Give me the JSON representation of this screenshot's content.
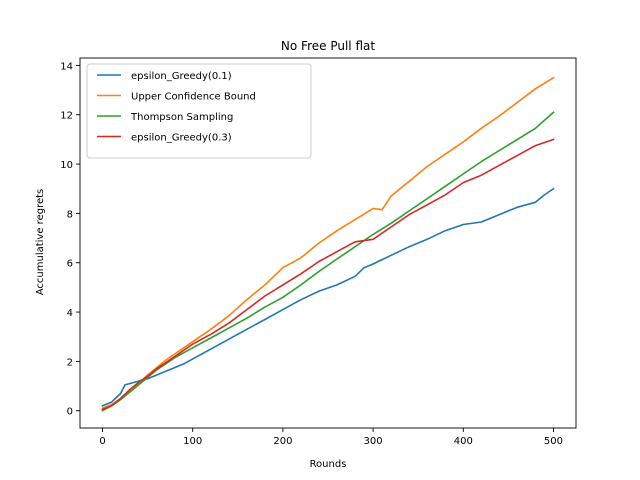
{
  "chart_data": {
    "type": "line",
    "title": "No Free Pull flat",
    "xlabel": "Rounds",
    "ylabel": "Accumulative regrets",
    "xlim": [
      -25,
      525
    ],
    "ylim": [
      -0.7,
      14.3
    ],
    "xticks": [
      0,
      100,
      200,
      300,
      400,
      500
    ],
    "yticks": [
      0,
      2,
      4,
      6,
      8,
      10,
      12,
      14
    ],
    "grid": false,
    "legend_position": "top-left",
    "series": [
      {
        "name": "epsilon_Greedy(0.1)",
        "color": "#1f77b4",
        "x": [
          0,
          10,
          20,
          25,
          30,
          40,
          50,
          60,
          70,
          80,
          90,
          100,
          120,
          140,
          160,
          180,
          200,
          220,
          240,
          260,
          280,
          290,
          300,
          320,
          340,
          360,
          380,
          400,
          420,
          440,
          460,
          480,
          490,
          500
        ],
        "y": [
          0.2,
          0.35,
          0.7,
          1.05,
          1.1,
          1.2,
          1.3,
          1.45,
          1.6,
          1.75,
          1.9,
          2.1,
          2.5,
          2.9,
          3.3,
          3.7,
          4.1,
          4.5,
          4.85,
          5.1,
          5.45,
          5.8,
          5.95,
          6.3,
          6.65,
          6.95,
          7.3,
          7.55,
          7.65,
          7.95,
          8.25,
          8.45,
          8.75,
          9.0
        ]
      },
      {
        "name": "Upper Confidence Bound",
        "color": "#ff7f0e",
        "x": [
          0,
          10,
          20,
          30,
          40,
          50,
          60,
          70,
          80,
          90,
          100,
          120,
          140,
          160,
          180,
          200,
          220,
          240,
          260,
          280,
          300,
          310,
          320,
          340,
          360,
          380,
          400,
          420,
          440,
          460,
          480,
          500
        ],
        "y": [
          0.1,
          0.25,
          0.5,
          0.8,
          1.1,
          1.45,
          1.75,
          2.05,
          2.3,
          2.55,
          2.8,
          3.3,
          3.85,
          4.5,
          5.1,
          5.8,
          6.2,
          6.8,
          7.3,
          7.75,
          8.2,
          8.15,
          8.7,
          9.3,
          9.9,
          10.4,
          10.9,
          11.45,
          11.95,
          12.5,
          13.05,
          13.5
        ]
      },
      {
        "name": "Thompson Sampling",
        "color": "#2ca02c",
        "x": [
          0,
          10,
          20,
          30,
          40,
          50,
          60,
          70,
          80,
          90,
          100,
          120,
          140,
          160,
          180,
          200,
          220,
          240,
          260,
          280,
          300,
          320,
          340,
          360,
          380,
          400,
          420,
          440,
          460,
          480,
          500
        ],
        "y": [
          0.0,
          0.2,
          0.45,
          0.75,
          1.05,
          1.35,
          1.65,
          1.9,
          2.15,
          2.35,
          2.55,
          2.95,
          3.35,
          3.75,
          4.2,
          4.6,
          5.1,
          5.65,
          6.15,
          6.65,
          7.15,
          7.6,
          8.1,
          8.6,
          9.1,
          9.6,
          10.1,
          10.55,
          11.0,
          11.45,
          12.1
        ]
      },
      {
        "name": "epsilon_Greedy(0.3)",
        "color": "#d62728",
        "x": [
          0,
          10,
          20,
          30,
          40,
          50,
          60,
          70,
          80,
          90,
          100,
          120,
          140,
          160,
          180,
          200,
          220,
          240,
          260,
          280,
          300,
          320,
          340,
          360,
          380,
          400,
          420,
          440,
          460,
          480,
          500
        ],
        "y": [
          0.05,
          0.2,
          0.5,
          0.85,
          1.15,
          1.4,
          1.7,
          1.95,
          2.2,
          2.45,
          2.7,
          3.1,
          3.55,
          4.1,
          4.65,
          5.1,
          5.55,
          6.05,
          6.45,
          6.85,
          6.95,
          7.45,
          7.95,
          8.35,
          8.75,
          9.25,
          9.55,
          9.95,
          10.35,
          10.75,
          11.0
        ]
      }
    ]
  }
}
